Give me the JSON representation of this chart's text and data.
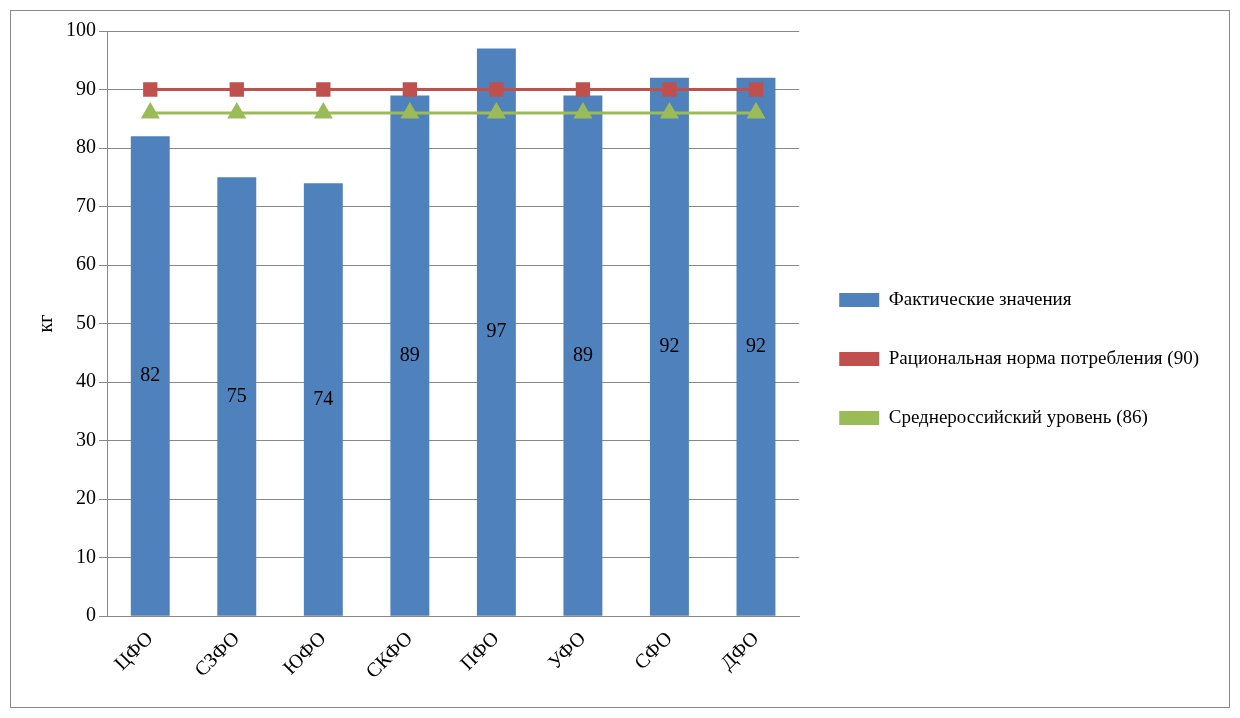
{
  "chart_data": {
    "type": "bar",
    "ylabel": "кг",
    "categories": [
      "ЦФО",
      "СЗФО",
      "ЮФО",
      "СКФО",
      "ПФО",
      "УФО",
      "СФО",
      "ДФО"
    ],
    "series": [
      {
        "name": "Фактические значения",
        "color": "#4f81bd",
        "values": [
          82,
          75,
          74,
          89,
          97,
          89,
          92,
          92
        ],
        "value_labels": [
          "82",
          "75",
          "74",
          "89",
          "97",
          "89",
          "92",
          "92"
        ]
      },
      {
        "name": "Рациональная норма потребления (90)",
        "type": "line",
        "marker": "square",
        "color": "#c0504d",
        "values": [
          90,
          90,
          90,
          90,
          90,
          90,
          90,
          90
        ]
      },
      {
        "name": "Среднероссийский уровень (86)",
        "type": "line",
        "marker": "triangle",
        "color": "#9bbb59",
        "values": [
          86,
          86,
          86,
          86,
          86,
          86,
          86,
          86
        ]
      }
    ],
    "ylim": [
      0,
      100
    ],
    "yticks": [
      0,
      10,
      20,
      30,
      40,
      50,
      60,
      70,
      80,
      90,
      100
    ],
    "grid": "y",
    "legend": "right"
  }
}
